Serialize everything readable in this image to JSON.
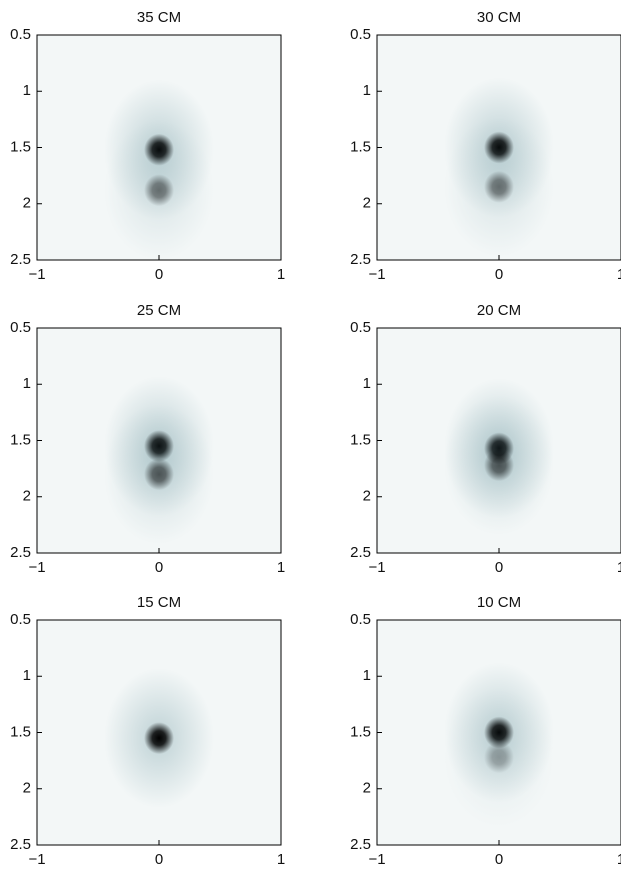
{
  "chart_data": [
    {
      "type": "image",
      "title": "35 CM",
      "xlim": [
        -1,
        1
      ],
      "ylim": [
        0.5,
        2.5
      ],
      "y_inverted": true,
      "xticks": [
        {
          "value": -1,
          "label": "−1"
        },
        0,
        1
      ],
      "yticks": [
        0.5,
        1,
        1.5,
        2,
        2.5
      ],
      "color": "#0e0e26",
      "spots": [
        {
          "x": 0,
          "y": 1.52,
          "intensity": 1
        },
        {
          "x": 0,
          "y": 1.88,
          "intensity": 0.5
        }
      ]
    },
    {
      "type": "image",
      "title": "30 CM",
      "xlim": [
        -1,
        1
      ],
      "ylim": [
        0.5,
        2.5
      ],
      "y_inverted": true,
      "xticks": [
        {
          "value": -1,
          "label": "−1"
        },
        0,
        1
      ],
      "yticks": [
        0.5,
        1,
        1.5,
        2,
        2.5
      ],
      "color": "#0e0e26",
      "spots": [
        {
          "x": 0,
          "y": 1.5,
          "intensity": 1
        },
        {
          "x": 0,
          "y": 1.85,
          "intensity": 0.5
        }
      ]
    },
    {
      "type": "image",
      "title": "25 CM",
      "xlim": [
        -1,
        1
      ],
      "ylim": [
        0.5,
        2.5
      ],
      "y_inverted": true,
      "xticks": [
        {
          "value": -1,
          "label": "−1"
        },
        0,
        1
      ],
      "yticks": [
        0.5,
        1,
        1.5,
        2,
        2.5
      ],
      "color": "#0e0e26",
      "spots": [
        {
          "x": 0,
          "y": 1.55,
          "intensity": 1
        },
        {
          "x": 0,
          "y": 1.8,
          "intensity": 0.6
        }
      ]
    },
    {
      "type": "image",
      "title": "20 CM",
      "xlim": [
        -1,
        1
      ],
      "ylim": [
        0.5,
        2.5
      ],
      "y_inverted": true,
      "xticks": [
        {
          "value": -1,
          "label": "−1"
        },
        0,
        1
      ],
      "yticks": [
        0.5,
        1,
        1.5,
        2,
        2.5
      ],
      "color": "#0e0e26",
      "spots": [
        {
          "x": 0,
          "y": 1.57,
          "intensity": 1
        },
        {
          "x": 0,
          "y": 1.72,
          "intensity": 0.6
        }
      ]
    },
    {
      "type": "image",
      "title": "15 CM",
      "xlim": [
        -1,
        1
      ],
      "ylim": [
        0.5,
        2.5
      ],
      "y_inverted": true,
      "xticks": [
        {
          "value": -1,
          "label": "−1"
        },
        0,
        1
      ],
      "yticks": [
        0.5,
        1,
        1.5,
        2,
        2.5
      ],
      "color": "#0e0e26",
      "spots": [
        {
          "x": 0,
          "y": 1.55,
          "intensity": 1
        }
      ]
    },
    {
      "type": "image",
      "title": "10 CM",
      "xlim": [
        -1,
        1
      ],
      "ylim": [
        0.5,
        2.5
      ],
      "y_inverted": true,
      "xticks": [
        {
          "value": -1,
          "label": "−1"
        },
        0,
        1
      ],
      "yticks": [
        0.5,
        1,
        1.5,
        2,
        2.5
      ],
      "color": "#0e0e26",
      "spots": [
        {
          "x": 0,
          "y": 1.5,
          "intensity": 1
        },
        {
          "x": 0,
          "y": 1.72,
          "intensity": 0.3
        }
      ]
    }
  ]
}
